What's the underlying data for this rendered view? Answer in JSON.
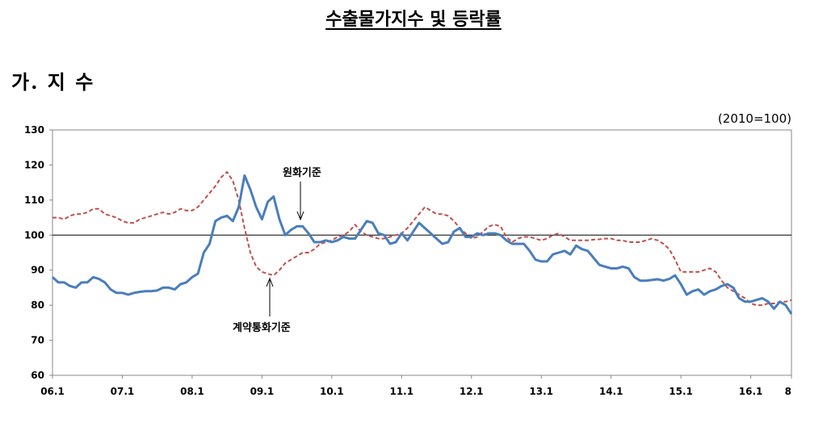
{
  "title": "수출물가지수 및 등락률",
  "section": "가. 지 수",
  "chart_data": {
    "type": "line",
    "unit_note": "(2010=100)",
    "start": "2006-01",
    "x_tick_labels": [
      "06.1",
      "07.1",
      "08.1",
      "09.1",
      "10.1",
      "11.1",
      "12.1",
      "13.1",
      "14.1",
      "15.1",
      "16.1",
      "8"
    ],
    "y_ticks": [
      60,
      70,
      80,
      90,
      100,
      110,
      120,
      130
    ],
    "ylim": [
      60,
      130
    ],
    "reference_line": 100,
    "grid": false,
    "series": [
      {
        "name": "원화기준",
        "color": "#4a7ebb",
        "style": "solid",
        "values": [
          88,
          86.5,
          86.5,
          85.5,
          85,
          86.5,
          86.5,
          88,
          87.5,
          86.5,
          84.5,
          83.5,
          83.5,
          83,
          83.5,
          83.8,
          84,
          84,
          84.2,
          85,
          85,
          84.5,
          86,
          86.5,
          88,
          89,
          95,
          97.5,
          104,
          105,
          105.5,
          104,
          108,
          117,
          113,
          108,
          104.5,
          109.5,
          111,
          104.5,
          100,
          101.5,
          102.5,
          102.5,
          100.5,
          98,
          98,
          98.5,
          98,
          98.5,
          99.5,
          99,
          99,
          101.5,
          104,
          103.5,
          100.5,
          100,
          97.5,
          98,
          100.5,
          98.5,
          101,
          103.5,
          102,
          100.5,
          99,
          97.5,
          98,
          101,
          102,
          99.5,
          99.5,
          100.5,
          100,
          100.5,
          100.5,
          100,
          98.5,
          97.5,
          97.5,
          97.5,
          95.5,
          93,
          92.5,
          92.5,
          94.5,
          95,
          95.5,
          94.5,
          97,
          96,
          95.5,
          93.5,
          91.5,
          91,
          90.5,
          90.5,
          91,
          90.5,
          88,
          87,
          87,
          87.2,
          87.4,
          87,
          87.5,
          88.5,
          86,
          83,
          84,
          84.5,
          83,
          84,
          84.5,
          85.5,
          86,
          85,
          82,
          81,
          81,
          81.5,
          82,
          81,
          79,
          81,
          80,
          77.5
        ]
      },
      {
        "name": "계약통화기준",
        "color": "#c0504d",
        "style": "dashed",
        "values": [
          105,
          105,
          104.5,
          105.5,
          106,
          106,
          106.5,
          107.5,
          107.5,
          106,
          105.5,
          105,
          104,
          103.5,
          103.5,
          104.5,
          105,
          105.5,
          106,
          106.5,
          106,
          106.5,
          107.5,
          107,
          107,
          108,
          110,
          112,
          114,
          116.5,
          118,
          115.5,
          110,
          102,
          95,
          91,
          89.5,
          89,
          88.5,
          90,
          92,
          93,
          94,
          95,
          95,
          96,
          97.5,
          98,
          98.5,
          99.5,
          100,
          101,
          103,
          101,
          100,
          99.5,
          99,
          99,
          99.5,
          100,
          100.5,
          102,
          104,
          106,
          108,
          107,
          106,
          106,
          105.5,
          104,
          102,
          100.5,
          99,
          99.5,
          101,
          102.5,
          103,
          102.5,
          99.5,
          98,
          99,
          99.5,
          99.5,
          99,
          98.5,
          99,
          100,
          100.5,
          99.5,
          98.5,
          98.5,
          98.5,
          98.5,
          98.7,
          98.8,
          99,
          99,
          98.5,
          98.5,
          98,
          98,
          98,
          98.5,
          99,
          98.5,
          97.5,
          96,
          93,
          89.5,
          89.5,
          89.5,
          89.5,
          90,
          90.5,
          89.5,
          87,
          85,
          84,
          83,
          82,
          80.5,
          80,
          80,
          80.5,
          80.5,
          81,
          81,
          81.5
        ]
      }
    ]
  }
}
